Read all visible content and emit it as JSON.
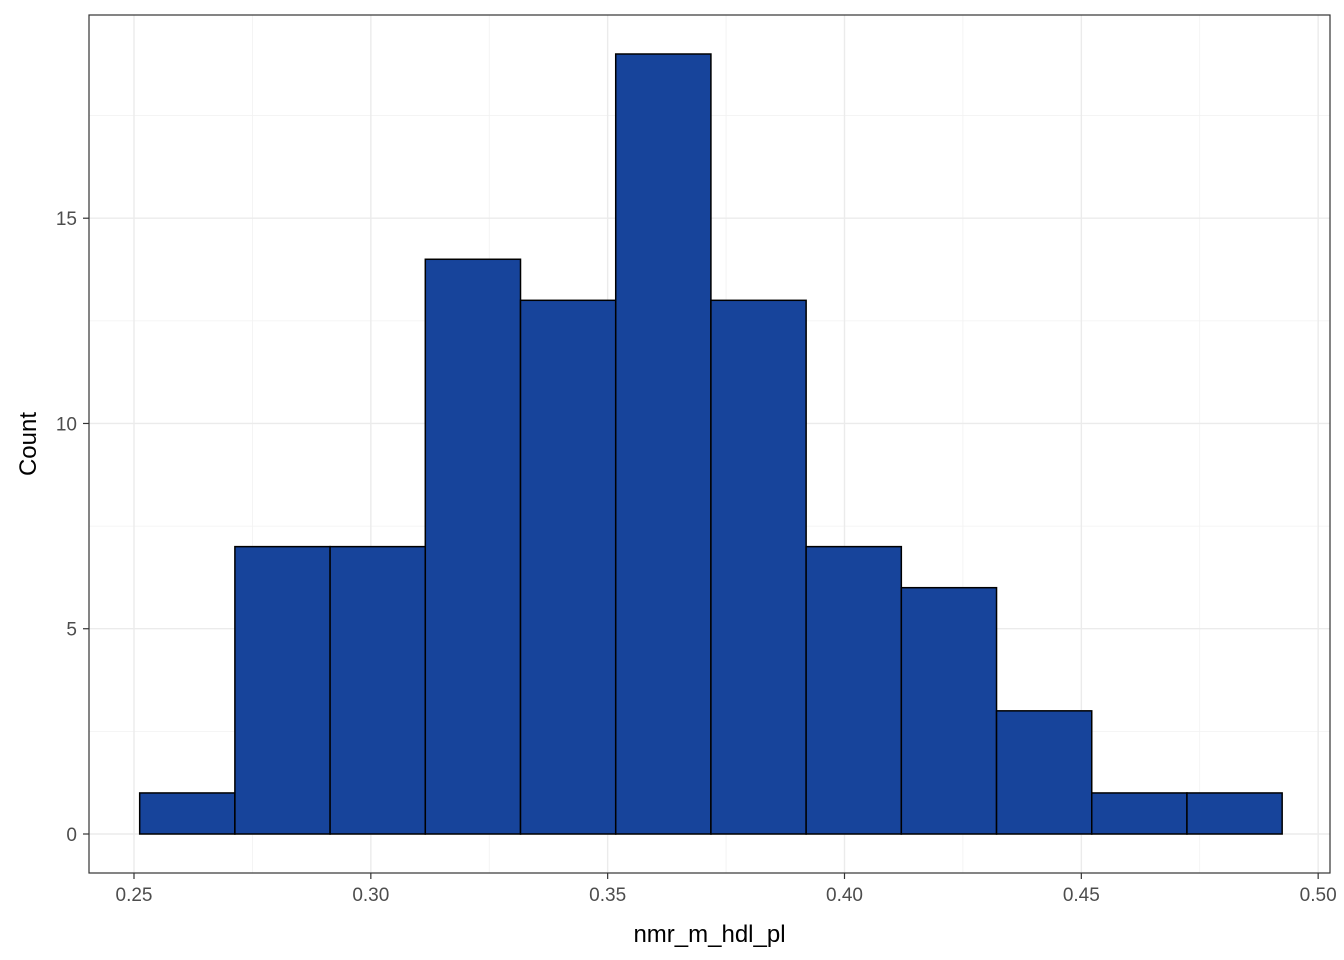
{
  "chart_data": {
    "type": "bar",
    "subtype": "histogram",
    "title": "",
    "xlabel": "nmr_m_hdl_pl",
    "ylabel": "Count",
    "xlim": [
      0.2405,
      0.5025
    ],
    "ylim": [
      -0.95,
      19.95
    ],
    "x_ticks": [
      0.25,
      0.3,
      0.35,
      0.4,
      0.45,
      0.5
    ],
    "x_tick_labels": [
      "0.25",
      "0.30",
      "0.35",
      "0.40",
      "0.45",
      "0.50"
    ],
    "y_ticks": [
      0,
      5,
      10,
      15
    ],
    "y_tick_labels": [
      "0",
      "5",
      "10",
      "15"
    ],
    "grid": true,
    "bar_color": "#17449b",
    "bar_edge_color": "#000000",
    "bins": [
      {
        "x0": 0.2512,
        "x1": 0.2713,
        "count": 1
      },
      {
        "x0": 0.2713,
        "x1": 0.2914,
        "count": 7
      },
      {
        "x0": 0.2914,
        "x1": 0.3115,
        "count": 7
      },
      {
        "x0": 0.3115,
        "x1": 0.3316,
        "count": 14
      },
      {
        "x0": 0.3316,
        "x1": 0.3517,
        "count": 13
      },
      {
        "x0": 0.3517,
        "x1": 0.3718,
        "count": 19
      },
      {
        "x0": 0.3718,
        "x1": 0.3919,
        "count": 13
      },
      {
        "x0": 0.3919,
        "x1": 0.412,
        "count": 7
      },
      {
        "x0": 0.412,
        "x1": 0.4321,
        "count": 6
      },
      {
        "x0": 0.4321,
        "x1": 0.4522,
        "count": 3
      },
      {
        "x0": 0.4522,
        "x1": 0.4723,
        "count": 1
      },
      {
        "x0": 0.4723,
        "x1": 0.4924,
        "count": 1
      }
    ]
  }
}
